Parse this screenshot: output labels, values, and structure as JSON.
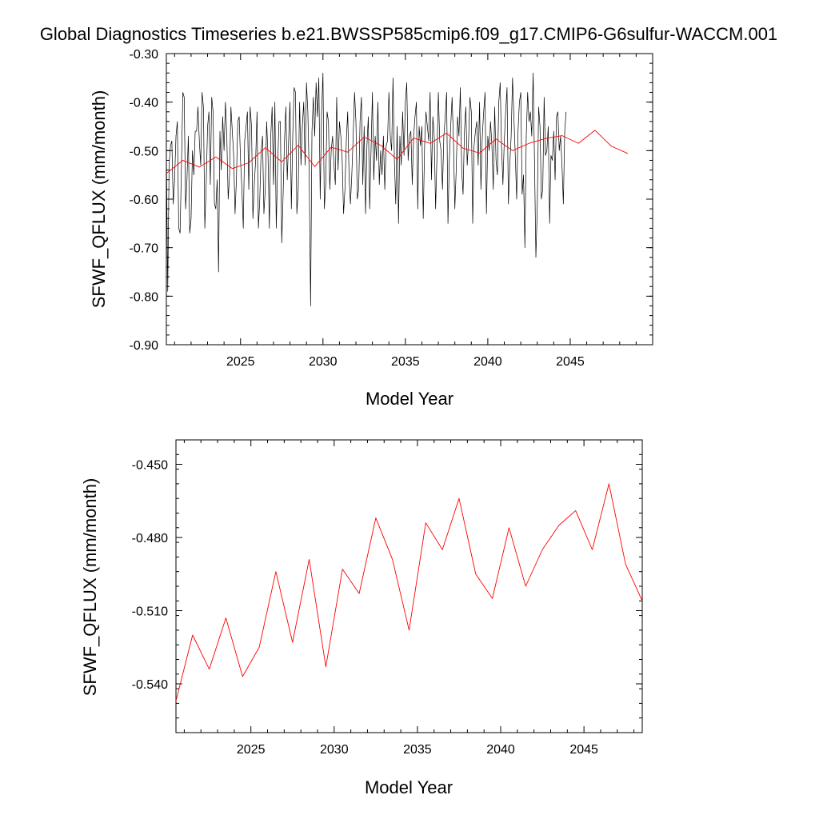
{
  "figure_title": "Global Diagnostics Timeseries b.e21.BWSSP585cmip6.f09_g17.CMIP6-G6sulfur-WACCM.001",
  "chart_data": [
    {
      "type": "line",
      "xlabel": "Model Year",
      "ylabel": "SFWF_QFLUX (mm/month)",
      "xlim": [
        2020.5,
        2050
      ],
      "ylim": [
        -0.9,
        -0.3
      ],
      "xticks": [
        2025,
        2030,
        2035,
        2040,
        2045
      ],
      "yticks": [
        -0.9,
        -0.8,
        -0.7,
        -0.6,
        -0.5,
        -0.4,
        -0.3
      ],
      "ytick_labels": [
        "-0.90",
        "-0.80",
        "-0.70",
        "-0.60",
        "-0.50",
        "-0.40",
        "-0.30"
      ],
      "series": [
        {
          "color": "#000000",
          "x_start": 2020.5,
          "x_step": 0.0833333,
          "values": [
            -0.5,
            -0.79,
            -0.53,
            -0.49,
            -0.48,
            -0.61,
            -0.56,
            -0.47,
            -0.44,
            -0.66,
            -0.67,
            -0.53,
            -0.38,
            -0.39,
            -0.62,
            -0.56,
            -0.47,
            -0.67,
            -0.64,
            -0.5,
            -0.55,
            -0.46,
            -0.46,
            -0.41,
            -0.48,
            -0.53,
            -0.38,
            -0.41,
            -0.66,
            -0.57,
            -0.45,
            -0.42,
            -0.57,
            -0.39,
            -0.42,
            -0.61,
            -0.62,
            -0.56,
            -0.75,
            -0.46,
            -0.54,
            -0.43,
            -0.5,
            -0.4,
            -0.47,
            -0.6,
            -0.55,
            -0.41,
            -0.46,
            -0.51,
            -0.63,
            -0.56,
            -0.44,
            -0.43,
            -0.52,
            -0.58,
            -0.66,
            -0.48,
            -0.45,
            -0.42,
            -0.58,
            -0.41,
            -0.45,
            -0.64,
            -0.57,
            -0.52,
            -0.42,
            -0.66,
            -0.6,
            -0.5,
            -0.47,
            -0.63,
            -0.58,
            -0.44,
            -0.51,
            -0.66,
            -0.47,
            -0.41,
            -0.57,
            -0.4,
            -0.66,
            -0.53,
            -0.44,
            -0.44,
            -0.69,
            -0.59,
            -0.48,
            -0.41,
            -0.56,
            -0.48,
            -0.4,
            -0.62,
            -0.47,
            -0.37,
            -0.38,
            -0.63,
            -0.58,
            -0.4,
            -0.53,
            -0.45,
            -0.4,
            -0.53,
            -0.36,
            -0.42,
            -0.55,
            -0.82,
            -0.46,
            -0.39,
            -0.47,
            -0.36,
            -0.43,
            -0.35,
            -0.6,
            -0.42,
            -0.34,
            -0.62,
            -0.57,
            -0.42,
            -0.44,
            -0.58,
            -0.5,
            -0.47,
            -0.53,
            -0.57,
            -0.39,
            -0.54,
            -0.44,
            -0.47,
            -0.52,
            -0.63,
            -0.58,
            -0.48,
            -0.42,
            -0.55,
            -0.61,
            -0.55,
            -0.47,
            -0.38,
            -0.44,
            -0.6,
            -0.58,
            -0.44,
            -0.39,
            -0.57,
            -0.45,
            -0.63,
            -0.49,
            -0.43,
            -0.62,
            -0.5,
            -0.38,
            -0.56,
            -0.47,
            -0.52,
            -0.4,
            -0.57,
            -0.5,
            -0.55,
            -0.47,
            -0.58,
            -0.49,
            -0.48,
            -0.38,
            -0.47,
            -0.5,
            -0.35,
            -0.52,
            -0.61,
            -0.45,
            -0.65,
            -0.47,
            -0.53,
            -0.42,
            -0.51,
            -0.4,
            -0.36,
            -0.52,
            -0.47,
            -0.46,
            -0.57,
            -0.47,
            -0.43,
            -0.4,
            -0.62,
            -0.45,
            -0.49,
            -0.45,
            -0.64,
            -0.49,
            -0.42,
            -0.45,
            -0.48,
            -0.38,
            -0.56,
            -0.43,
            -0.47,
            -0.62,
            -0.51,
            -0.38,
            -0.48,
            -0.5,
            -0.58,
            -0.47,
            -0.43,
            -0.38,
            -0.65,
            -0.52,
            -0.45,
            -0.39,
            -0.48,
            -0.62,
            -0.54,
            -0.43,
            -0.47,
            -0.37,
            -0.54,
            -0.59,
            -0.46,
            -0.41,
            -0.53,
            -0.48,
            -0.39,
            -0.42,
            -0.65,
            -0.49,
            -0.46,
            -0.44,
            -0.53,
            -0.4,
            -0.58,
            -0.47,
            -0.42,
            -0.38,
            -0.63,
            -0.47,
            -0.5,
            -0.44,
            -0.49,
            -0.58,
            -0.41,
            -0.52,
            -0.55,
            -0.4,
            -0.36,
            -0.49,
            -0.57,
            -0.48,
            -0.42,
            -0.37,
            -0.61,
            -0.53,
            -0.47,
            -0.35,
            -0.43,
            -0.51,
            -0.6,
            -0.46,
            -0.4,
            -0.38,
            -0.59,
            -0.55,
            -0.7,
            -0.47,
            -0.38,
            -0.44,
            -0.42,
            -0.47,
            -0.34,
            -0.52,
            -0.72,
            -0.62,
            -0.41,
            -0.45,
            -0.6,
            -0.58,
            -0.39,
            -0.51,
            -0.5,
            -0.45,
            -0.65,
            -0.51,
            -0.52,
            -0.46,
            -0.56,
            -0.43,
            -0.42,
            -0.5,
            -0.47,
            -0.53,
            -0.61,
            -0.46,
            -0.42
          ]
        },
        {
          "color": "#ff0000",
          "x": [
            2020.5,
            2021.5,
            2022.5,
            2023.5,
            2024.5,
            2025.5,
            2026.5,
            2027.5,
            2028.5,
            2029.5,
            2030.5,
            2031.5,
            2032.5,
            2033.5,
            2034.5,
            2035.5,
            2036.5,
            2037.5,
            2038.5,
            2039.5,
            2040.5,
            2041.5,
            2042.5,
            2043.5,
            2044.5,
            2045.5,
            2046.5,
            2047.5,
            2048.5
          ],
          "values": [
            -0.547,
            -0.52,
            -0.534,
            -0.513,
            -0.537,
            -0.525,
            -0.494,
            -0.523,
            -0.489,
            -0.533,
            -0.493,
            -0.503,
            -0.472,
            -0.489,
            -0.518,
            -0.474,
            -0.485,
            -0.464,
            -0.495,
            -0.505,
            -0.476,
            -0.5,
            -0.485,
            -0.475,
            -0.469,
            -0.485,
            -0.458,
            -0.491,
            -0.506
          ]
        }
      ]
    },
    {
      "type": "line",
      "xlabel": "Model Year",
      "ylabel": "SFWF_QFLUX (mm/month)",
      "xlim": [
        2020.5,
        2048.5
      ],
      "ylim": [
        -0.56,
        -0.44
      ],
      "xticks": [
        2025,
        2030,
        2035,
        2040,
        2045
      ],
      "yticks": [
        -0.54,
        -0.51,
        -0.48,
        -0.45
      ],
      "ytick_labels": [
        "-0.540",
        "-0.510",
        "-0.480",
        "-0.450"
      ],
      "series": [
        {
          "color": "#ff0000",
          "x": [
            2020.5,
            2021.5,
            2022.5,
            2023.5,
            2024.5,
            2025.5,
            2026.5,
            2027.5,
            2028.5,
            2029.5,
            2030.5,
            2031.5,
            2032.5,
            2033.5,
            2034.5,
            2035.5,
            2036.5,
            2037.5,
            2038.5,
            2039.5,
            2040.5,
            2041.5,
            2042.5,
            2043.5,
            2044.5,
            2045.5,
            2046.5,
            2047.5,
            2048.5
          ],
          "values": [
            -0.547,
            -0.52,
            -0.534,
            -0.513,
            -0.537,
            -0.525,
            -0.494,
            -0.523,
            -0.489,
            -0.533,
            -0.493,
            -0.503,
            -0.472,
            -0.489,
            -0.518,
            -0.474,
            -0.485,
            -0.464,
            -0.495,
            -0.505,
            -0.476,
            -0.5,
            -0.485,
            -0.475,
            -0.469,
            -0.485,
            -0.458,
            -0.491,
            -0.506
          ]
        }
      ]
    }
  ]
}
